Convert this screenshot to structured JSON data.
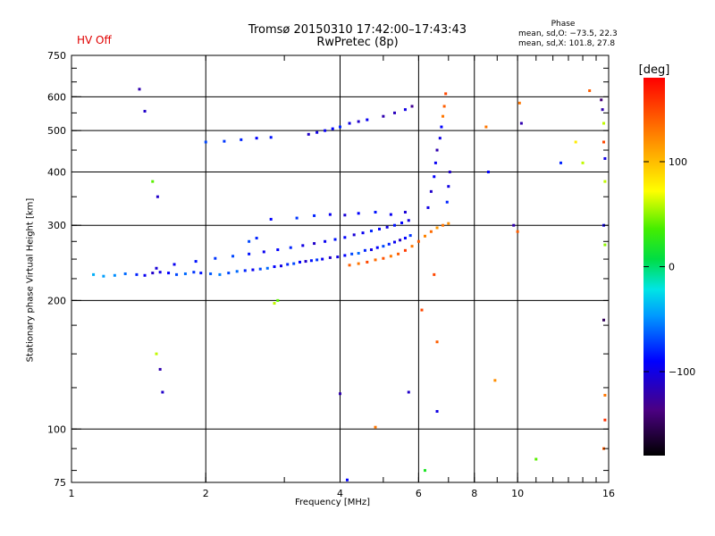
{
  "header": {
    "title_line1": "Tromsø 20150310 17:42:00–17:43:43",
    "title_line2": "RwPretec (8p)",
    "status": "HV Off",
    "phase_title": "Phase",
    "phase_o": "mean, sd,O: −73.5, 22.3",
    "phase_x": "mean, sd,X: 101.8, 27.8"
  },
  "colorbar": {
    "title": "[deg]",
    "ticks": [
      100,
      0,
      -100
    ]
  },
  "chart_data": {
    "type": "scatter",
    "title": "Tromsø 20150310 17:42:00–17:43:43",
    "subtitle": "RwPretec (8p)",
    "xlabel": "Frequency [MHz]",
    "ylabel": "Stationary phase Virtual Height [km]",
    "x_scale": "log",
    "y_scale": "log",
    "xlim": [
      1,
      16
    ],
    "ylim": [
      75,
      750
    ],
    "x_ticks": [
      "1",
      "2",
      "4",
      "6",
      "8",
      "10",
      "16"
    ],
    "y_ticks": [
      "75",
      "100",
      "200",
      "300",
      "400",
      "500",
      "600",
      "750"
    ],
    "x_grid": [
      2,
      4,
      6,
      8,
      10
    ],
    "y_grid": [
      100,
      200,
      300,
      400,
      500,
      600
    ],
    "color_label": "[deg]",
    "color_range": [
      -180,
      180
    ],
    "series": [
      {
        "description_points": "echo points, [freq MHz, height km, phase deg]",
        "points": [
          [
            1.12,
            230,
            -40
          ],
          [
            1.18,
            228,
            -45
          ],
          [
            1.25,
            229,
            -50
          ],
          [
            1.32,
            231,
            -60
          ],
          [
            1.4,
            230,
            -80
          ],
          [
            1.46,
            229,
            -95
          ],
          [
            1.52,
            232,
            -110
          ],
          [
            1.58,
            233,
            -100
          ],
          [
            1.65,
            232,
            -90
          ],
          [
            1.72,
            230,
            -70
          ],
          [
            1.8,
            231,
            -60
          ],
          [
            1.88,
            233,
            -75
          ],
          [
            1.95,
            232,
            -85
          ],
          [
            2.05,
            231,
            -65
          ],
          [
            2.15,
            230,
            -55
          ],
          [
            2.25,
            232,
            -70
          ],
          [
            2.35,
            234,
            -60
          ],
          [
            2.45,
            235,
            -80
          ],
          [
            2.55,
            236,
            -95
          ],
          [
            2.65,
            237,
            -70
          ],
          [
            2.75,
            238,
            -60
          ],
          [
            2.85,
            240,
            -90
          ],
          [
            2.95,
            241,
            -100
          ],
          [
            3.05,
            243,
            -80
          ],
          [
            3.15,
            244,
            -70
          ],
          [
            3.25,
            246,
            -90
          ],
          [
            3.35,
            247,
            -110
          ],
          [
            3.45,
            248,
            -85
          ],
          [
            3.55,
            249,
            -75
          ],
          [
            3.65,
            250,
            -95
          ],
          [
            3.8,
            252,
            -110
          ],
          [
            3.95,
            253,
            -100
          ],
          [
            4.1,
            255,
            -90
          ],
          [
            4.25,
            257,
            -70
          ],
          [
            4.4,
            258,
            -60
          ],
          [
            4.55,
            262,
            -80
          ],
          [
            4.7,
            263,
            -100
          ],
          [
            4.85,
            266,
            -90
          ],
          [
            5.0,
            268,
            -70
          ],
          [
            5.15,
            271,
            -80
          ],
          [
            5.3,
            274,
            -95
          ],
          [
            5.45,
            277,
            -110
          ],
          [
            5.6,
            280,
            -90
          ],
          [
            5.75,
            284,
            -75
          ],
          [
            1.55,
            238,
            -105
          ],
          [
            1.7,
            243,
            -95
          ],
          [
            1.9,
            247,
            -85
          ],
          [
            2.1,
            251,
            -75
          ],
          [
            2.3,
            254,
            -70
          ],
          [
            2.5,
            257,
            -85
          ],
          [
            2.7,
            260,
            -95
          ],
          [
            2.9,
            263,
            -90
          ],
          [
            3.1,
            266,
            -80
          ],
          [
            3.3,
            269,
            -100
          ],
          [
            3.5,
            272,
            -110
          ],
          [
            3.7,
            275,
            -95
          ],
          [
            3.9,
            278,
            -85
          ],
          [
            4.1,
            281,
            -90
          ],
          [
            4.3,
            285,
            -105
          ],
          [
            4.5,
            288,
            -95
          ],
          [
            4.7,
            291,
            -80
          ],
          [
            4.9,
            294,
            -90
          ],
          [
            5.1,
            297,
            -100
          ],
          [
            5.3,
            300,
            -85
          ],
          [
            5.5,
            304,
            -90
          ],
          [
            5.7,
            308,
            -100
          ],
          [
            2.8,
            310,
            -90
          ],
          [
            3.2,
            312,
            -75
          ],
          [
            3.5,
            316,
            -80
          ],
          [
            3.8,
            318,
            -95
          ],
          [
            4.1,
            317,
            -105
          ],
          [
            4.4,
            320,
            -90
          ],
          [
            4.8,
            322,
            -85
          ],
          [
            5.2,
            318,
            -95
          ],
          [
            5.6,
            322,
            -105
          ],
          [
            4.2,
            242,
            140
          ],
          [
            4.4,
            244,
            130
          ],
          [
            4.6,
            246,
            150
          ],
          [
            4.8,
            249,
            135
          ],
          [
            5.0,
            251,
            145
          ],
          [
            5.2,
            254,
            130
          ],
          [
            5.4,
            257,
            140
          ],
          [
            5.6,
            262,
            155
          ],
          [
            5.8,
            268,
            130
          ],
          [
            6.0,
            275,
            140
          ],
          [
            6.2,
            283,
            125
          ],
          [
            6.4,
            290,
            135
          ],
          [
            6.6,
            296,
            115
          ],
          [
            6.8,
            300,
            130
          ],
          [
            7.0,
            303,
            120
          ],
          [
            6.3,
            330,
            -100
          ],
          [
            6.4,
            360,
            -110
          ],
          [
            6.5,
            390,
            -90
          ],
          [
            6.55,
            420,
            -95
          ],
          [
            6.6,
            450,
            -120
          ],
          [
            6.7,
            480,
            -100
          ],
          [
            6.75,
            510,
            -90
          ],
          [
            6.8,
            540,
            130
          ],
          [
            6.85,
            570,
            140
          ],
          [
            6.9,
            610,
            150
          ],
          [
            6.95,
            340,
            -80
          ],
          [
            7.0,
            370,
            -100
          ],
          [
            7.05,
            400,
            -110
          ],
          [
            2.0,
            470,
            -70
          ],
          [
            2.2,
            472,
            -75
          ],
          [
            2.4,
            476,
            -80
          ],
          [
            2.6,
            480,
            -90
          ],
          [
            2.8,
            482,
            -85
          ],
          [
            3.4,
            490,
            -110
          ],
          [
            3.55,
            495,
            -100
          ],
          [
            3.7,
            500,
            -95
          ],
          [
            3.85,
            505,
            -90
          ],
          [
            4.0,
            510,
            -80
          ],
          [
            4.2,
            520,
            -100
          ],
          [
            4.4,
            525,
            -110
          ],
          [
            4.6,
            530,
            -95
          ],
          [
            5.0,
            540,
            -120
          ],
          [
            5.3,
            550,
            -115
          ],
          [
            5.6,
            560,
            -100
          ],
          [
            5.8,
            570,
            -130
          ],
          [
            1.42,
            625,
            -120
          ],
          [
            1.46,
            555,
            -110
          ],
          [
            1.52,
            380,
            40
          ],
          [
            1.56,
            350,
            -110
          ],
          [
            1.58,
            138,
            -120
          ],
          [
            1.6,
            122,
            -110
          ],
          [
            1.55,
            150,
            60
          ],
          [
            2.85,
            197,
            60
          ],
          [
            2.9,
            200,
            40
          ],
          [
            6.1,
            190,
            150
          ],
          [
            6.5,
            230,
            150
          ],
          [
            6.6,
            160,
            140
          ],
          [
            6.6,
            110,
            -100
          ],
          [
            8.5,
            510,
            130
          ],
          [
            8.6,
            400,
            -90
          ],
          [
            8.9,
            130,
            120
          ],
          [
            9.8,
            300,
            -120
          ],
          [
            10.0,
            290,
            140
          ],
          [
            10.1,
            580,
            130
          ],
          [
            10.2,
            520,
            -120
          ],
          [
            11.0,
            85,
            40
          ],
          [
            12.5,
            420,
            -80
          ],
          [
            13.5,
            470,
            80
          ],
          [
            14.0,
            420,
            60
          ],
          [
            14.5,
            620,
            140
          ],
          [
            15.4,
            590,
            -140
          ],
          [
            15.5,
            560,
            -120
          ],
          [
            15.6,
            520,
            60
          ],
          [
            15.6,
            470,
            150
          ],
          [
            15.7,
            430,
            -100
          ],
          [
            15.7,
            380,
            60
          ],
          [
            15.6,
            300,
            -100
          ],
          [
            15.7,
            270,
            50
          ],
          [
            15.6,
            180,
            -150
          ],
          [
            15.7,
            120,
            130
          ],
          [
            15.7,
            105,
            160
          ],
          [
            15.6,
            90,
            140
          ],
          [
            6.2,
            80,
            20
          ],
          [
            4.8,
            101,
            130
          ],
          [
            4.0,
            121,
            -120
          ],
          [
            5.7,
            122,
            -110
          ],
          [
            4.15,
            76,
            -90
          ],
          [
            2.5,
            275,
            -70
          ],
          [
            2.6,
            280,
            -80
          ]
        ]
      }
    ]
  }
}
